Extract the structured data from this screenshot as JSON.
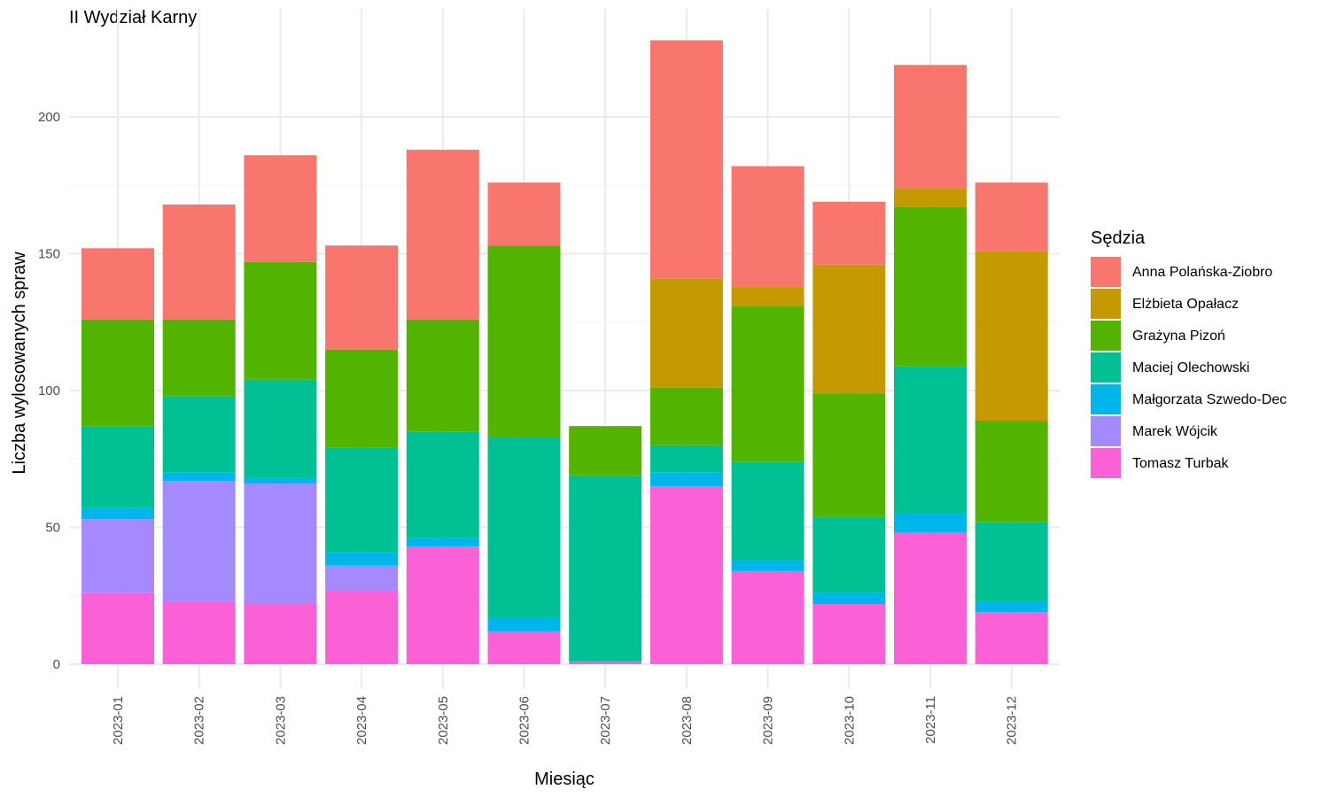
{
  "chart_data": {
    "type": "bar",
    "stacked": true,
    "title": "II Wydział Karny",
    "xlabel": "Miesiąc",
    "ylabel": "Liczba wylosowanych spraw",
    "ylim": [
      0,
      230
    ],
    "yticks": [
      0,
      50,
      100,
      150,
      200
    ],
    "ytick_labels": [
      "0",
      "50",
      "100",
      "150",
      "200"
    ],
    "grid": true,
    "legend_title": "Sędzia",
    "legend_position": "right",
    "categories": [
      "2023-01",
      "2023-02",
      "2023-03",
      "2023-04",
      "2023-05",
      "2023-06",
      "2023-07",
      "2023-08",
      "2023-09",
      "2023-10",
      "2023-11",
      "2023-12"
    ],
    "series": [
      {
        "name": "Anna Polańska-Ziobro",
        "color": "#F8766D",
        "values": [
          26,
          42,
          39,
          38,
          62,
          23,
          0,
          87,
          44,
          23,
          45,
          25
        ]
      },
      {
        "name": "Elżbieta Opałacz",
        "color": "#C49A00",
        "values": [
          0,
          0,
          0,
          0,
          0,
          0,
          0,
          40,
          7,
          47,
          7,
          62
        ]
      },
      {
        "name": "Grażyna Pizoń",
        "color": "#53B400",
        "values": [
          39,
          28,
          43,
          36,
          41,
          70,
          18,
          21,
          57,
          45,
          58,
          37
        ]
      },
      {
        "name": "Maciej Olechowski",
        "color": "#00C094",
        "values": [
          30,
          28,
          36,
          38,
          39,
          66,
          68,
          10,
          36,
          28,
          54,
          29
        ]
      },
      {
        "name": "Małgorzata Szwedo-Dec",
        "color": "#00B6EB",
        "values": [
          4,
          3,
          2,
          5,
          3,
          5,
          0,
          5,
          4,
          4,
          7,
          4
        ]
      },
      {
        "name": "Marek Wójcik",
        "color": "#A58AFF",
        "values": [
          27,
          44,
          44,
          9,
          0,
          0,
          0,
          0,
          0,
          0,
          0,
          0
        ]
      },
      {
        "name": "Tomasz Turbak",
        "color": "#FB61D7",
        "values": [
          26,
          23,
          22,
          27,
          43,
          12,
          1,
          65,
          34,
          22,
          48,
          19
        ]
      }
    ]
  }
}
